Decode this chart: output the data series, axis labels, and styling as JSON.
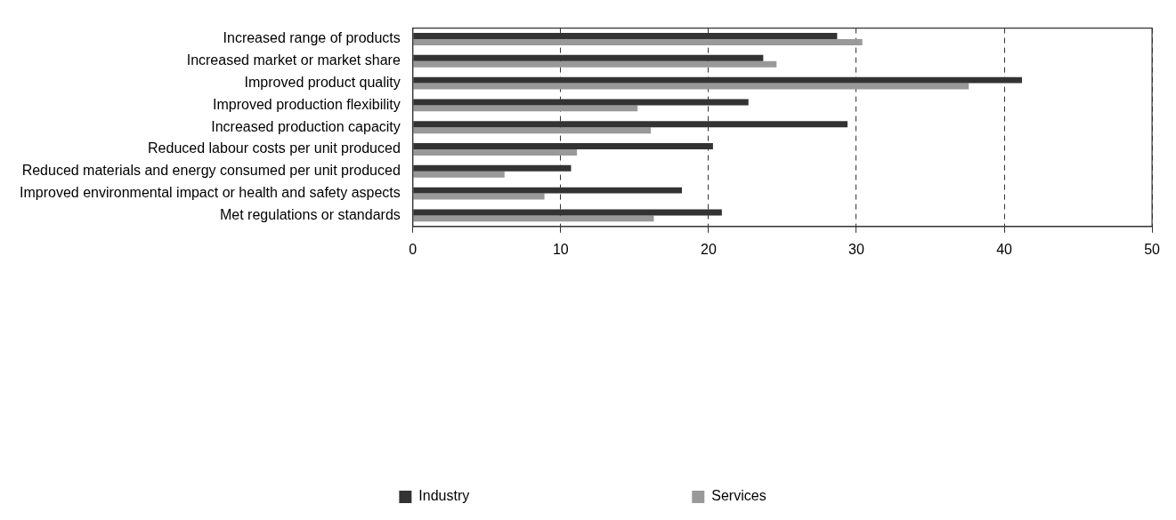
{
  "chart_data": {
    "type": "bar",
    "orientation": "horizontal",
    "categories": [
      "Increased range of products",
      "Increased market or market share",
      "Improved product quality",
      "Improved production flexibility",
      "Increased production capacity",
      "Reduced labour costs per unit produced",
      "Reduced materials and energy consumed per unit produced",
      "Improved environmental impact or health and safety aspects",
      "Met regulations or standards"
    ],
    "series": [
      {
        "name": "Industry",
        "color": "#333333",
        "values": [
          28.7,
          23.7,
          41.2,
          22.7,
          29.4,
          20.3,
          10.7,
          18.2,
          20.9
        ]
      },
      {
        "name": "Services",
        "color": "#999999",
        "values": [
          30.4,
          24.6,
          37.6,
          15.2,
          16.1,
          11.1,
          6.2,
          8.9,
          16.3
        ]
      }
    ],
    "xlim": [
      0,
      50
    ],
    "xticks": [
      0,
      10,
      20,
      30,
      40,
      50
    ],
    "grid": "x",
    "legend": "bottom"
  }
}
